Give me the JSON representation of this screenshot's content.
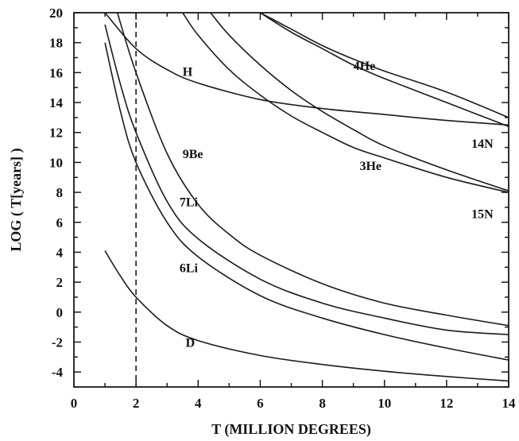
{
  "chart_data": {
    "type": "line",
    "xlabel": "T (MILLION DEGREES)",
    "ylabel": "LOG ( T[years] )",
    "xlim": [
      0,
      14
    ],
    "ylim": [
      -5,
      20
    ],
    "xticks": [
      0,
      2,
      4,
      6,
      8,
      10,
      12,
      14
    ],
    "yticks": [
      -4,
      -2,
      0,
      2,
      4,
      6,
      8,
      10,
      12,
      14,
      16,
      18,
      20
    ],
    "grid": false,
    "legend": "none",
    "reference_line": {
      "axis": "x",
      "value": 2,
      "style": "dashed"
    },
    "series": [
      {
        "name": "D",
        "label_at": [
          3.6,
          -2.0
        ],
        "x": [
          1.0,
          1.5,
          2.0,
          3.0,
          4.0,
          6.0,
          8.0,
          10.0,
          12.0,
          14.0
        ],
        "y": [
          4.1,
          2.4,
          1.0,
          -0.9,
          -1.9,
          -2.9,
          -3.5,
          -3.95,
          -4.3,
          -4.6
        ]
      },
      {
        "name": "6Li",
        "label_at": [
          3.4,
          3.0
        ],
        "x": [
          1.0,
          1.5,
          2.0,
          3.0,
          4.0,
          6.0,
          8.0,
          10.0,
          12.0,
          14.0
        ],
        "y": [
          18.0,
          13.4,
          10.0,
          6.0,
          3.7,
          1.1,
          -0.4,
          -1.5,
          -2.4,
          -3.2
        ]
      },
      {
        "name": "7Li",
        "label_at": [
          3.4,
          7.4
        ],
        "x": [
          1.0,
          1.5,
          2.0,
          3.0,
          4.0,
          6.0,
          8.0,
          10.0,
          12.0,
          14.0
        ],
        "y": [
          19.2,
          15.2,
          12.0,
          7.4,
          4.9,
          2.2,
          0.6,
          -0.4,
          -1.2,
          -1.5
        ]
      },
      {
        "name": "9Be",
        "label_at": [
          3.5,
          10.6
        ],
        "x": [
          1.4,
          2.0,
          3.0,
          4.0,
          5.0,
          6.0,
          8.0,
          10.0,
          12.0,
          14.0
        ],
        "y": [
          20.0,
          16.0,
          10.6,
          7.2,
          5.2,
          3.8,
          1.9,
          0.6,
          -0.2,
          -0.9
        ]
      },
      {
        "name": "H",
        "label_at": [
          3.5,
          16.1
        ],
        "x": [
          1.0,
          2.0,
          3.0,
          4.0,
          6.0,
          8.0,
          10.0,
          12.0,
          14.0
        ],
        "y": [
          20.0,
          17.6,
          16.2,
          15.3,
          14.2,
          13.6,
          13.2,
          12.8,
          12.5
        ]
      },
      {
        "name": "3He",
        "label_at": [
          9.2,
          9.8
        ],
        "x": [
          3.5,
          4.0,
          5.0,
          6.0,
          7.0,
          8.0,
          9.0,
          10.0,
          12.0,
          14.0
        ],
        "y": [
          20.0,
          18.5,
          16.2,
          14.5,
          13.1,
          12.0,
          11.0,
          10.3,
          9.0,
          8.0
        ]
      },
      {
        "name": "4He",
        "label_at": [
          9.0,
          16.5
        ],
        "x": [
          6.0,
          7.0,
          8.0,
          9.0,
          10.0,
          12.0,
          14.0
        ],
        "y": [
          20.0,
          18.9,
          17.8,
          16.9,
          16.1,
          14.7,
          13.0
        ]
      },
      {
        "name": "14N",
        "label_at": [
          12.8,
          11.3
        ],
        "x": [
          6.0,
          7.0,
          8.0,
          9.0,
          10.0,
          12.0,
          14.0
        ],
        "y": [
          20.0,
          18.7,
          17.6,
          16.5,
          15.6,
          14.0,
          12.4
        ]
      },
      {
        "name": "15N",
        "label_at": [
          12.8,
          6.6
        ],
        "x": [
          4.4,
          5.0,
          6.0,
          7.0,
          8.0,
          9.0,
          10.0,
          12.0,
          14.0
        ],
        "y": [
          20.0,
          18.5,
          16.5,
          14.8,
          13.4,
          12.2,
          11.1,
          9.5,
          8.1
        ]
      }
    ]
  }
}
